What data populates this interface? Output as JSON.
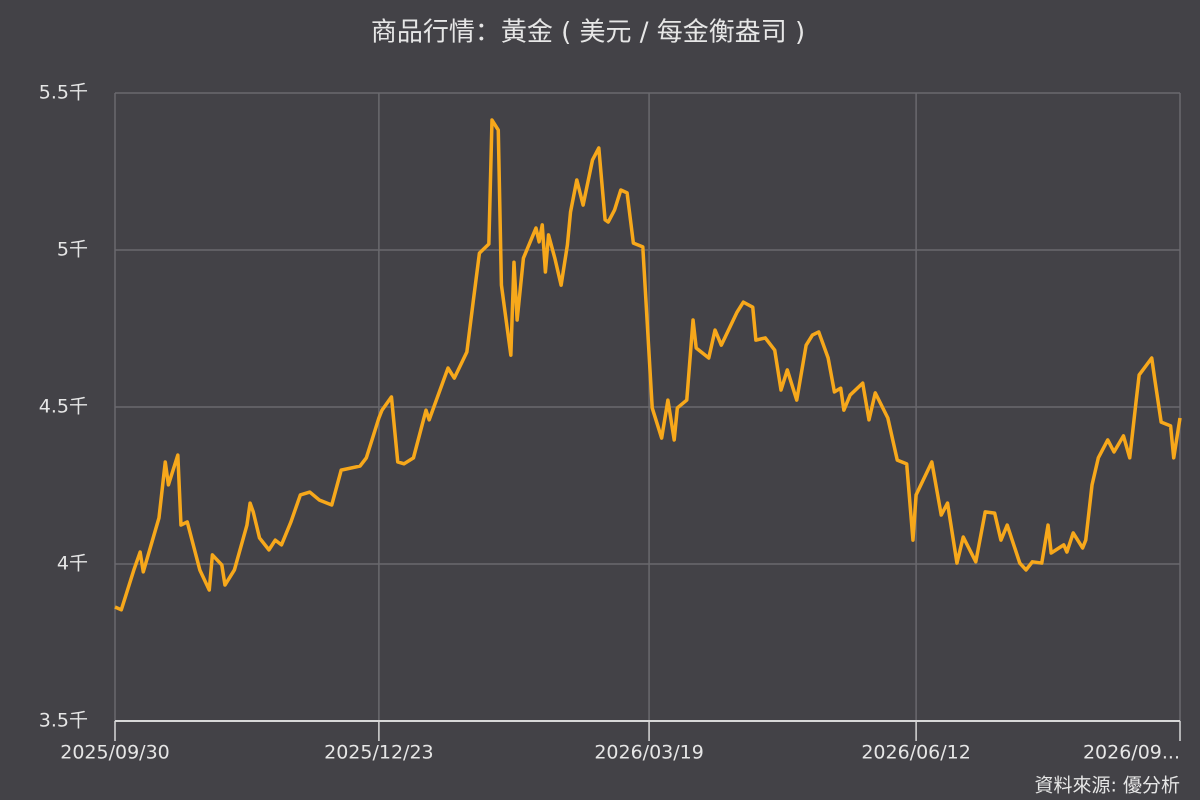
{
  "chart_data": {
    "type": "line",
    "title": "商品行情：黃金 ( 美元 / 每金衡盎司 )",
    "source": "資料來源: 優分析",
    "x": [
      "2025/09/30",
      "2025/10/02",
      "2025/10/06",
      "2025/10/08",
      "2025/10/09",
      "2025/10/14",
      "2025/10/16",
      "2025/10/17",
      "2025/10/20",
      "2025/10/21",
      "2025/10/23",
      "2025/10/27",
      "2025/10/30",
      "2025/10/31",
      "2025/11/03",
      "2025/11/04",
      "2025/11/07",
      "2025/11/11",
      "2025/11/12",
      "2025/11/13",
      "2025/11/15",
      "2025/11/18",
      "2025/11/20",
      "2025/11/22",
      "2025/11/25",
      "2025/11/28",
      "2025/12/01",
      "2025/12/04",
      "2025/12/08",
      "2025/12/11",
      "2025/12/17",
      "2025/12/19",
      "2025/12/23",
      "2025/12/24",
      "2025/12/27",
      "2025/12/29",
      "2025/12/31",
      "2026/01/03",
      "2026/01/07",
      "2026/01/08",
      "2026/01/14",
      "2026/01/16",
      "2026/01/20",
      "2026/01/22",
      "2026/01/24",
      "2026/01/27",
      "2026/01/28",
      "2026/01/30",
      "2026/01/31",
      "2026/02/03",
      "2026/02/04",
      "2026/02/05",
      "2026/02/07",
      "2026/02/11",
      "2026/02/12",
      "2026/02/13",
      "2026/02/14",
      "2026/02/15",
      "2026/02/17",
      "2026/02/19",
      "2026/02/21",
      "2026/02/22",
      "2026/02/24",
      "2026/02/26",
      "2026/03/01",
      "2026/03/03",
      "2026/03/05",
      "2026/03/06",
      "2026/03/08",
      "2026/03/10",
      "2026/03/12",
      "2026/03/14",
      "2026/03/17",
      "2026/03/20",
      "2026/03/23",
      "2026/03/25",
      "2026/03/27",
      "2026/03/28",
      "2026/03/31",
      "2026/04/02",
      "2026/04/03",
      "2026/04/07",
      "2026/04/09",
      "2026/04/11",
      "2026/04/16",
      "2026/04/18",
      "2026/04/21",
      "2026/04/22",
      "2026/04/25",
      "2026/04/28",
      "2026/04/30",
      "2026/05/02",
      "2026/05/05",
      "2026/05/08",
      "2026/05/10",
      "2026/05/12",
      "2026/05/15",
      "2026/05/17",
      "2026/05/19",
      "2026/05/20",
      "2026/05/22",
      "2026/05/26",
      "2026/05/28",
      "2026/05/30",
      "2026/06/03",
      "2026/06/06",
      "2026/06/09",
      "2026/06/11",
      "2026/06/12",
      "2026/06/17",
      "2026/06/20",
      "2026/06/22",
      "2026/06/25",
      "2026/06/27",
      "2026/07/01",
      "2026/07/04",
      "2026/07/07",
      "2026/07/09",
      "2026/07/11",
      "2026/07/15",
      "2026/07/17",
      "2026/07/19",
      "2026/07/22",
      "2026/07/24",
      "2026/07/25",
      "2026/07/29",
      "2026/07/30",
      "2026/08/01",
      "2026/08/04",
      "2026/08/05",
      "2026/08/07",
      "2026/08/09",
      "2026/08/12",
      "2026/08/14",
      "2026/08/17",
      "2026/08/19",
      "2026/08/21",
      "2026/08/22",
      "2026/08/26",
      "2026/08/27",
      "2026/08/29",
      "2026/09/01",
      "2026/09/02",
      "2026/09/04"
    ],
    "series": [
      {
        "name": "黃金",
        "color": "#f7a81b",
        "values": [
          3863,
          3854,
          3981,
          4038,
          3975,
          4147,
          4325,
          4252,
          4347,
          4124,
          4134,
          3981,
          3917,
          4029,
          3997,
          3933,
          3981,
          4124,
          4194,
          4166,
          4083,
          4045,
          4076,
          4061,
          4134,
          4220,
          4229,
          4204,
          4188,
          4299,
          4312,
          4338,
          4465,
          4490,
          4532,
          4325,
          4319,
          4338,
          4490,
          4459,
          4624,
          4592,
          4675,
          4834,
          4990,
          5019,
          5414,
          5382,
          4888,
          4665,
          4961,
          4777,
          4974,
          5070,
          5026,
          5080,
          4930,
          5048,
          4974,
          4888,
          5016,
          5121,
          5223,
          5143,
          5287,
          5325,
          5096,
          5089,
          5127,
          5191,
          5182,
          5022,
          5010,
          4497,
          4401,
          4522,
          4395,
          4497,
          4522,
          4777,
          4688,
          4656,
          4745,
          4697,
          4802,
          4834,
          4818,
          4713,
          4720,
          4681,
          4554,
          4618,
          4522,
          4697,
          4729,
          4739,
          4656,
          4548,
          4560,
          4490,
          4538,
          4576,
          4459,
          4545,
          4465,
          4331,
          4319,
          4076,
          4220,
          4325,
          4156,
          4194,
          4003,
          4086,
          4007,
          4166,
          4162,
          4076,
          4124,
          4003,
          3981,
          4007,
          4003,
          4124,
          4035,
          4061,
          4038,
          4099,
          4051,
          4076,
          4252,
          4338,
          4395,
          4357,
          4408,
          4338,
          4516,
          4602,
          4656,
          4586,
          4452,
          4440,
          4338,
          4465
        ]
      }
    ],
    "xlim": [
      "2025/09/30",
      "2026/09/04"
    ],
    "xticks": [
      "2025/09/30",
      "2025/12/23",
      "2026/03/19",
      "2026/06/12",
      {
        "value": "2026/09/04",
        "label": "2026/09..."
      }
    ],
    "ylim": [
      3500,
      5500
    ],
    "yticks": [
      {
        "value": 3500,
        "label": "3.5千"
      },
      {
        "value": 4000,
        "label": "4千"
      },
      {
        "value": 4500,
        "label": "4.5千"
      },
      {
        "value": 5000,
        "label": "5千"
      },
      {
        "value": 5500,
        "label": "5.5千"
      }
    ],
    "grid": true
  }
}
